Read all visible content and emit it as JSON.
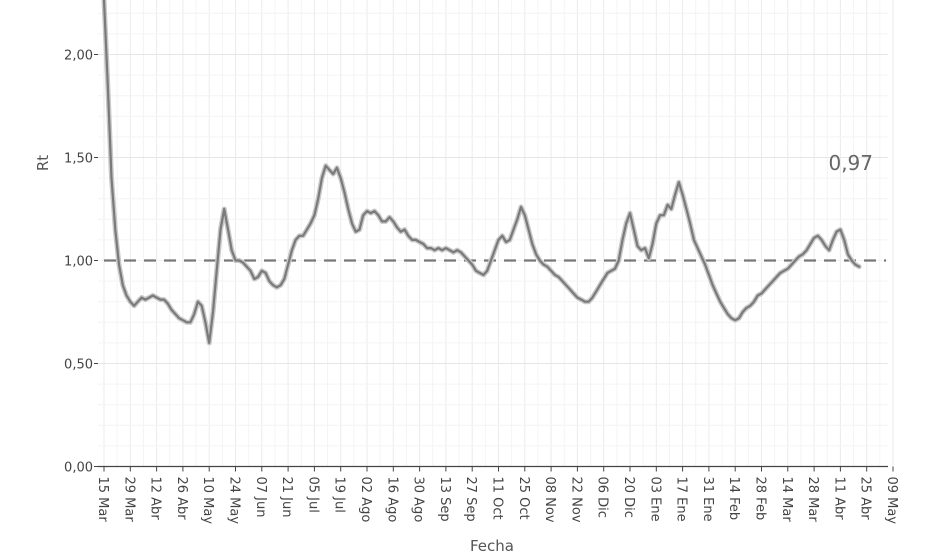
{
  "chart_data": {
    "type": "line",
    "title": "",
    "xlabel": "Fecha",
    "ylabel": "Rt",
    "ylim": [
      0,
      2.3
    ],
    "grid": true,
    "y_ticks": [
      {
        "value": 0,
        "label": "0,00"
      },
      {
        "value": 0.5,
        "label": "0,50"
      },
      {
        "value": 1.0,
        "label": "1,00"
      },
      {
        "value": 1.5,
        "label": "1,50"
      },
      {
        "value": 2.0,
        "label": "2,00"
      }
    ],
    "x_ticks": [
      {
        "day": 0,
        "label": "15 Mar"
      },
      {
        "day": 14,
        "label": "29 Mar"
      },
      {
        "day": 28,
        "label": "12 Abr"
      },
      {
        "day": 42,
        "label": "26 Abr"
      },
      {
        "day": 56,
        "label": "10 May"
      },
      {
        "day": 70,
        "label": "24 May"
      },
      {
        "day": 84,
        "label": "07 Jun"
      },
      {
        "day": 98,
        "label": "21 Jun"
      },
      {
        "day": 112,
        "label": "05 Jul"
      },
      {
        "day": 126,
        "label": "19 Jul"
      },
      {
        "day": 140,
        "label": "02 Ago"
      },
      {
        "day": 154,
        "label": "16 Ago"
      },
      {
        "day": 168,
        "label": "30 Ago"
      },
      {
        "day": 182,
        "label": "13 Sep"
      },
      {
        "day": 196,
        "label": "27 Sep"
      },
      {
        "day": 210,
        "label": "11 Oct"
      },
      {
        "day": 224,
        "label": "25 Oct"
      },
      {
        "day": 238,
        "label": "08 Nov"
      },
      {
        "day": 252,
        "label": "22 Nov"
      },
      {
        "day": 266,
        "label": "06 Dic"
      },
      {
        "day": 280,
        "label": "20 Dic"
      },
      {
        "day": 294,
        "label": "03 Ene"
      },
      {
        "day": 308,
        "label": "17 Ene"
      },
      {
        "day": 322,
        "label": "31 Ene"
      },
      {
        "day": 336,
        "label": "14 Feb"
      },
      {
        "day": 350,
        "label": "28 Feb"
      },
      {
        "day": 364,
        "label": "14 Mar"
      },
      {
        "day": 378,
        "label": "28 Mar"
      },
      {
        "day": 392,
        "label": "11 Abr"
      },
      {
        "day": 406,
        "label": "25 Abr"
      },
      {
        "day": 420,
        "label": "09 May"
      }
    ],
    "reference_line": {
      "value": 1.0,
      "style": "dashed"
    },
    "annotation": {
      "text": "0,97"
    },
    "series": [
      {
        "points": [
          [
            0,
            2.3
          ],
          [
            2,
            1.85
          ],
          [
            4,
            1.4
          ],
          [
            6,
            1.15
          ],
          [
            8,
            0.98
          ],
          [
            10,
            0.88
          ],
          [
            12,
            0.83
          ],
          [
            14,
            0.8
          ],
          [
            16,
            0.78
          ],
          [
            18,
            0.8
          ],
          [
            20,
            0.82
          ],
          [
            22,
            0.81
          ],
          [
            24,
            0.82
          ],
          [
            26,
            0.83
          ],
          [
            28,
            0.82
          ],
          [
            30,
            0.81
          ],
          [
            32,
            0.81
          ],
          [
            34,
            0.79
          ],
          [
            36,
            0.76
          ],
          [
            38,
            0.74
          ],
          [
            40,
            0.72
          ],
          [
            42,
            0.71
          ],
          [
            44,
            0.7
          ],
          [
            46,
            0.7
          ],
          [
            48,
            0.74
          ],
          [
            50,
            0.8
          ],
          [
            52,
            0.78
          ],
          [
            54,
            0.7
          ],
          [
            56,
            0.6
          ],
          [
            58,
            0.75
          ],
          [
            60,
            0.95
          ],
          [
            62,
            1.15
          ],
          [
            64,
            1.25
          ],
          [
            66,
            1.15
          ],
          [
            68,
            1.05
          ],
          [
            70,
            1.0
          ],
          [
            72,
            1.0
          ],
          [
            74,
            0.99
          ],
          [
            76,
            0.97
          ],
          [
            78,
            0.95
          ],
          [
            80,
            0.91
          ],
          [
            82,
            0.92
          ],
          [
            84,
            0.95
          ],
          [
            86,
            0.94
          ],
          [
            88,
            0.9
          ],
          [
            90,
            0.88
          ],
          [
            92,
            0.87
          ],
          [
            94,
            0.88
          ],
          [
            96,
            0.91
          ],
          [
            98,
            0.98
          ],
          [
            100,
            1.05
          ],
          [
            102,
            1.1
          ],
          [
            104,
            1.12
          ],
          [
            106,
            1.12
          ],
          [
            108,
            1.15
          ],
          [
            110,
            1.18
          ],
          [
            112,
            1.22
          ],
          [
            114,
            1.3
          ],
          [
            116,
            1.4
          ],
          [
            118,
            1.46
          ],
          [
            120,
            1.44
          ],
          [
            122,
            1.42
          ],
          [
            124,
            1.45
          ],
          [
            126,
            1.4
          ],
          [
            128,
            1.33
          ],
          [
            130,
            1.25
          ],
          [
            132,
            1.18
          ],
          [
            134,
            1.14
          ],
          [
            136,
            1.15
          ],
          [
            138,
            1.22
          ],
          [
            140,
            1.24
          ],
          [
            142,
            1.23
          ],
          [
            144,
            1.24
          ],
          [
            146,
            1.22
          ],
          [
            148,
            1.19
          ],
          [
            150,
            1.19
          ],
          [
            152,
            1.21
          ],
          [
            154,
            1.19
          ],
          [
            156,
            1.16
          ],
          [
            158,
            1.14
          ],
          [
            160,
            1.15
          ],
          [
            162,
            1.12
          ],
          [
            164,
            1.1
          ],
          [
            166,
            1.1
          ],
          [
            168,
            1.09
          ],
          [
            170,
            1.08
          ],
          [
            172,
            1.06
          ],
          [
            174,
            1.06
          ],
          [
            176,
            1.05
          ],
          [
            178,
            1.06
          ],
          [
            180,
            1.05
          ],
          [
            182,
            1.06
          ],
          [
            184,
            1.05
          ],
          [
            186,
            1.04
          ],
          [
            188,
            1.05
          ],
          [
            190,
            1.04
          ],
          [
            192,
            1.02
          ],
          [
            194,
            1.0
          ],
          [
            196,
            0.98
          ],
          [
            198,
            0.95
          ],
          [
            200,
            0.94
          ],
          [
            202,
            0.93
          ],
          [
            204,
            0.95
          ],
          [
            206,
            1.0
          ],
          [
            208,
            1.05
          ],
          [
            210,
            1.1
          ],
          [
            212,
            1.12
          ],
          [
            214,
            1.09
          ],
          [
            216,
            1.1
          ],
          [
            218,
            1.15
          ],
          [
            220,
            1.2
          ],
          [
            222,
            1.26
          ],
          [
            224,
            1.22
          ],
          [
            226,
            1.15
          ],
          [
            228,
            1.08
          ],
          [
            230,
            1.03
          ],
          [
            232,
            1.0
          ],
          [
            234,
            0.98
          ],
          [
            236,
            0.97
          ],
          [
            238,
            0.95
          ],
          [
            240,
            0.93
          ],
          [
            242,
            0.92
          ],
          [
            244,
            0.9
          ],
          [
            246,
            0.88
          ],
          [
            248,
            0.86
          ],
          [
            250,
            0.84
          ],
          [
            252,
            0.82
          ],
          [
            254,
            0.81
          ],
          [
            256,
            0.8
          ],
          [
            258,
            0.8
          ],
          [
            260,
            0.82
          ],
          [
            262,
            0.85
          ],
          [
            264,
            0.88
          ],
          [
            266,
            0.91
          ],
          [
            268,
            0.94
          ],
          [
            270,
            0.95
          ],
          [
            272,
            0.96
          ],
          [
            274,
            1.0
          ],
          [
            276,
            1.1
          ],
          [
            278,
            1.18
          ],
          [
            280,
            1.23
          ],
          [
            282,
            1.15
          ],
          [
            284,
            1.07
          ],
          [
            286,
            1.05
          ],
          [
            288,
            1.06
          ],
          [
            290,
            1.01
          ],
          [
            292,
            1.08
          ],
          [
            294,
            1.18
          ],
          [
            296,
            1.22
          ],
          [
            298,
            1.22
          ],
          [
            300,
            1.27
          ],
          [
            302,
            1.25
          ],
          [
            304,
            1.32
          ],
          [
            306,
            1.38
          ],
          [
            308,
            1.32
          ],
          [
            310,
            1.25
          ],
          [
            312,
            1.18
          ],
          [
            314,
            1.1
          ],
          [
            316,
            1.06
          ],
          [
            318,
            1.02
          ],
          [
            320,
            0.98
          ],
          [
            322,
            0.93
          ],
          [
            324,
            0.88
          ],
          [
            326,
            0.84
          ],
          [
            328,
            0.8
          ],
          [
            330,
            0.77
          ],
          [
            332,
            0.74
          ],
          [
            334,
            0.72
          ],
          [
            336,
            0.71
          ],
          [
            338,
            0.72
          ],
          [
            340,
            0.75
          ],
          [
            342,
            0.77
          ],
          [
            344,
            0.78
          ],
          [
            346,
            0.8
          ],
          [
            348,
            0.83
          ],
          [
            350,
            0.84
          ],
          [
            352,
            0.86
          ],
          [
            354,
            0.88
          ],
          [
            356,
            0.9
          ],
          [
            358,
            0.92
          ],
          [
            360,
            0.94
          ],
          [
            362,
            0.95
          ],
          [
            364,
            0.96
          ],
          [
            366,
            0.98
          ],
          [
            368,
            1.0
          ],
          [
            370,
            1.02
          ],
          [
            372,
            1.03
          ],
          [
            374,
            1.05
          ],
          [
            376,
            1.08
          ],
          [
            378,
            1.11
          ],
          [
            380,
            1.12
          ],
          [
            382,
            1.1
          ],
          [
            384,
            1.07
          ],
          [
            386,
            1.05
          ],
          [
            388,
            1.1
          ],
          [
            390,
            1.14
          ],
          [
            392,
            1.15
          ],
          [
            394,
            1.1
          ],
          [
            396,
            1.03
          ],
          [
            398,
            1.0
          ],
          [
            400,
            0.98
          ],
          [
            402,
            0.97
          ]
        ]
      }
    ]
  }
}
